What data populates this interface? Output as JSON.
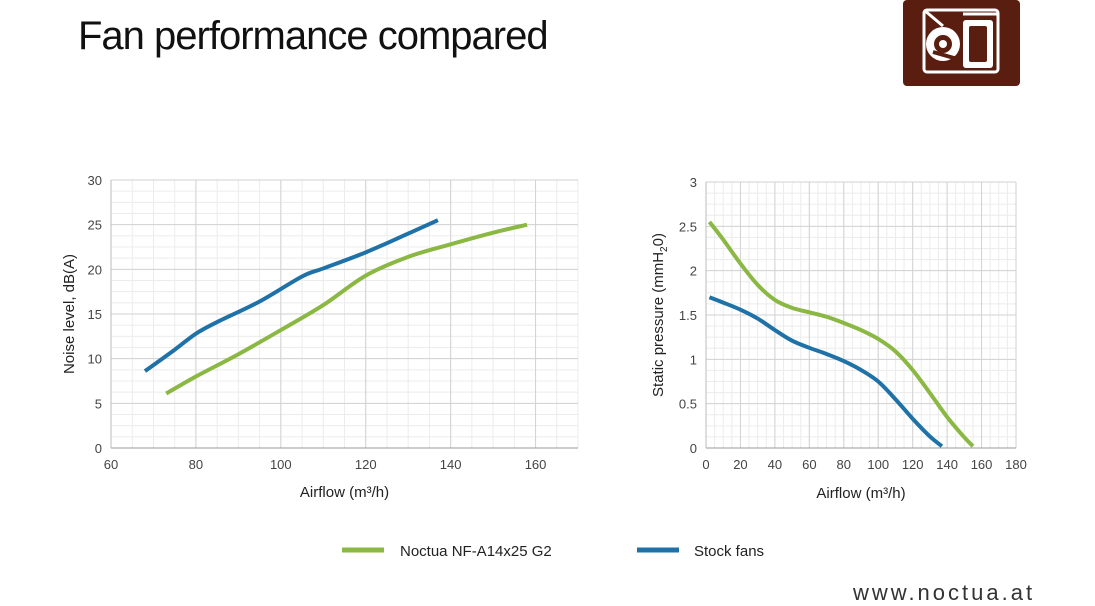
{
  "slide": {
    "title": "Fan performance compared",
    "footer": "www.noctua.at",
    "logo_icon": "noctua-owl-logo-icon"
  },
  "colors": {
    "noctua": "#8ab843",
    "stock": "#1f72a8",
    "logo_bg": "#5a1e10",
    "grid": "#dddddd"
  },
  "chart_data": [
    {
      "type": "line",
      "xlabel": "Airflow (m³/h)",
      "ylabel": "Noise level, dB(A)",
      "xlim": [
        60,
        170
      ],
      "ylim": [
        0,
        30
      ],
      "x_ticks": [
        60,
        80,
        100,
        120,
        140,
        160
      ],
      "y_ticks": [
        0,
        5,
        10,
        15,
        20,
        25,
        30
      ],
      "grid": true,
      "series": [
        {
          "name": "Noctua NF-A14x25 G2",
          "color": "#8ab843",
          "x": [
            73,
            80,
            90,
            100,
            110,
            120,
            130,
            140,
            150,
            158
          ],
          "y": [
            6.1,
            8.0,
            10.5,
            13.2,
            16.0,
            19.3,
            21.4,
            22.8,
            24.1,
            25.0
          ]
        },
        {
          "name": "Stock fans",
          "color": "#1f72a8",
          "x": [
            68,
            75,
            80,
            85,
            95,
            105,
            110,
            120,
            130,
            137
          ],
          "y": [
            8.6,
            11.0,
            12.8,
            14.1,
            16.4,
            19.2,
            20.1,
            21.9,
            24.0,
            25.5
          ]
        }
      ]
    },
    {
      "type": "line",
      "xlabel": "Airflow (m³/h)",
      "ylabel": "Static pressure (mmH",
      "ylabel_sub": "2",
      "ylabel_end": "0)",
      "xlim": [
        0,
        180
      ],
      "ylim": [
        0,
        3
      ],
      "x_ticks": [
        0,
        20,
        40,
        60,
        80,
        100,
        120,
        140,
        160,
        180
      ],
      "y_ticks": [
        0,
        0.5,
        1,
        1.5,
        2,
        2.5,
        3
      ],
      "grid": true,
      "series": [
        {
          "name": "Noctua NF-A14x25 G2",
          "color": "#8ab843",
          "x": [
            2,
            10,
            20,
            30,
            40,
            50,
            60,
            70,
            80,
            90,
            100,
            110,
            120,
            130,
            140,
            150,
            155
          ],
          "y": [
            2.55,
            2.35,
            2.08,
            1.84,
            1.67,
            1.58,
            1.53,
            1.48,
            1.41,
            1.33,
            1.23,
            1.09,
            0.88,
            0.62,
            0.35,
            0.12,
            0.02
          ]
        },
        {
          "name": "Stock fans",
          "color": "#1f72a8",
          "x": [
            2,
            10,
            20,
            30,
            40,
            50,
            60,
            70,
            80,
            90,
            100,
            110,
            120,
            130,
            137
          ],
          "y": [
            1.7,
            1.64,
            1.56,
            1.46,
            1.33,
            1.21,
            1.13,
            1.06,
            0.98,
            0.88,
            0.75,
            0.55,
            0.33,
            0.13,
            0.02
          ]
        }
      ]
    }
  ],
  "legend": [
    {
      "label": "Noctua NF-A14x25 G2",
      "color": "#8ab843"
    },
    {
      "label": "Stock fans",
      "color": "#1f72a8"
    }
  ]
}
